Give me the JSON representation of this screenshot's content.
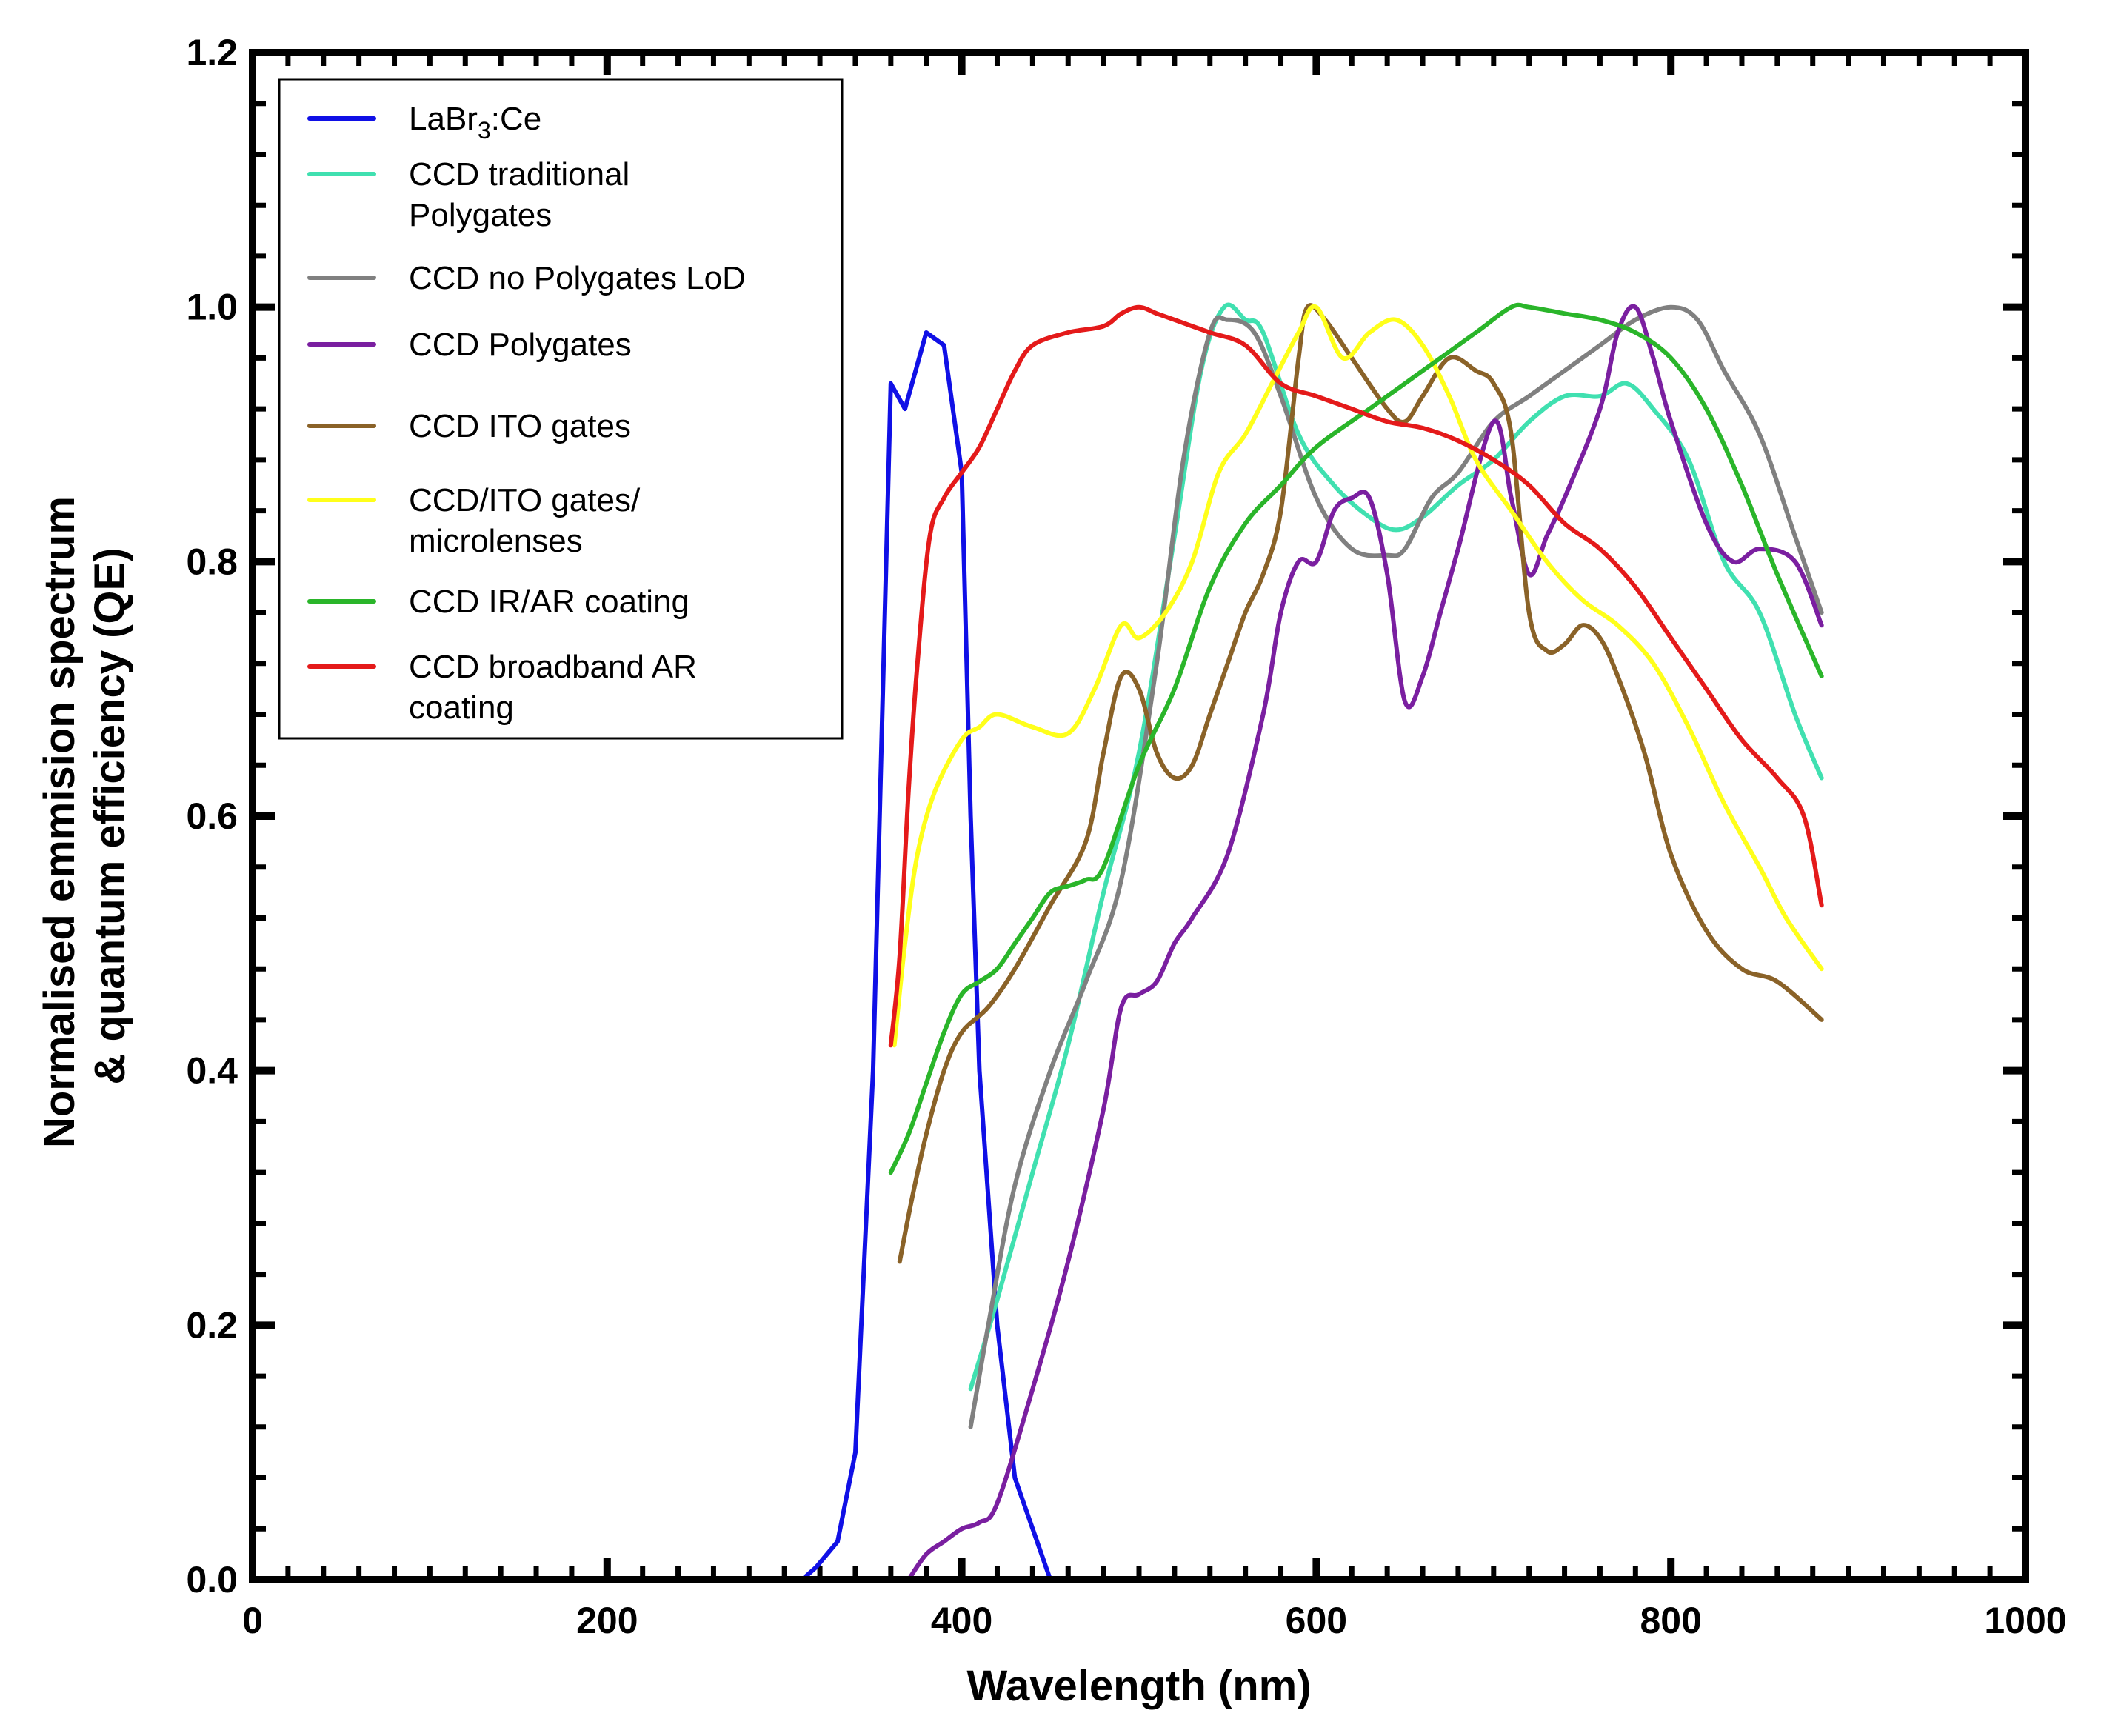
{
  "chart_data": {
    "type": "line",
    "title": "",
    "xlabel": "Wavelength (nm)",
    "ylabel_lines": [
      "Normalised emmision spectrum",
      "& quantum efficiency (QE)"
    ],
    "xlim": [
      0,
      1000
    ],
    "ylim": [
      0,
      1.2
    ],
    "xticks": [
      0,
      200,
      400,
      600,
      800,
      1000
    ],
    "xtick_labels": [
      "0",
      "200",
      "400",
      "600",
      "800",
      "1000"
    ],
    "yticks": [
      0,
      0.2,
      0.4,
      0.6,
      0.8,
      1.0,
      1.2
    ],
    "ytick_labels": [
      "0.0",
      "0.2",
      "0.4",
      "0.6",
      "0.8",
      "1.0",
      "1.2"
    ],
    "grid": false,
    "legend_position": "top-left",
    "series": [
      {
        "name": "LaBr3:Ce",
        "legend_label": {
          "main": "LaBr",
          "sub": "3",
          "tail": ":Ce"
        },
        "color": "#1010e6",
        "x": [
          310,
          318,
          330,
          340,
          350,
          360,
          368,
          380,
          390,
          400,
          405,
          410,
          420,
          430,
          440,
          450
        ],
        "y": [
          0.0,
          0.01,
          0.03,
          0.1,
          0.4,
          0.94,
          0.92,
          0.98,
          0.97,
          0.87,
          0.6,
          0.4,
          0.2,
          0.08,
          0.04,
          0.0
        ]
      },
      {
        "name": "CCD traditional Polygates",
        "legend_lines": [
          "CCD traditional",
          "Polygates"
        ],
        "color": "#40e0b0",
        "x": [
          405,
          420,
          440,
          460,
          480,
          500,
          520,
          535,
          548,
          560,
          570,
          590,
          610,
          630,
          645,
          660,
          680,
          700,
          720,
          740,
          760,
          775,
          790,
          810,
          830,
          850,
          870,
          885
        ],
        "y": [
          0.15,
          0.22,
          0.32,
          0.42,
          0.54,
          0.65,
          0.82,
          0.95,
          1.0,
          0.99,
          0.98,
          0.9,
          0.86,
          0.835,
          0.825,
          0.835,
          0.86,
          0.88,
          0.91,
          0.93,
          0.93,
          0.94,
          0.92,
          0.88,
          0.8,
          0.76,
          0.68,
          0.63
        ]
      },
      {
        "name": "CCD no Polygates LoD",
        "legend_lines": [
          "CCD no Polygates LoD"
        ],
        "color": "#808080",
        "x": [
          405,
          415,
          430,
          450,
          470,
          490,
          510,
          525,
          540,
          550,
          565,
          580,
          600,
          620,
          640,
          650,
          665,
          680,
          700,
          720,
          740,
          760,
          780,
          800,
          815,
          830,
          850,
          870,
          885
        ],
        "y": [
          0.12,
          0.2,
          0.31,
          0.4,
          0.47,
          0.55,
          0.72,
          0.88,
          0.98,
          0.99,
          0.98,
          0.93,
          0.85,
          0.81,
          0.805,
          0.81,
          0.85,
          0.87,
          0.91,
          0.93,
          0.95,
          0.97,
          0.99,
          1.0,
          0.99,
          0.95,
          0.9,
          0.82,
          0.76
        ]
      },
      {
        "name": "CCD Polygates",
        "legend_lines": [
          "CCD Polygates"
        ],
        "color": "#7a1fa0",
        "x": [
          370,
          380,
          390,
          400,
          410,
          420,
          440,
          460,
          480,
          490,
          500,
          510,
          520,
          530,
          550,
          570,
          580,
          590,
          600,
          610,
          620,
          630,
          640,
          650,
          660,
          670,
          680,
          700,
          710,
          720,
          730,
          740,
          760,
          770,
          780,
          790,
          800,
          820,
          835,
          850,
          870,
          885
        ],
        "y": [
          0.0,
          0.02,
          0.03,
          0.04,
          0.045,
          0.06,
          0.15,
          0.25,
          0.37,
          0.45,
          0.46,
          0.47,
          0.5,
          0.52,
          0.57,
          0.68,
          0.76,
          0.8,
          0.8,
          0.84,
          0.85,
          0.85,
          0.79,
          0.69,
          0.71,
          0.76,
          0.81,
          0.91,
          0.85,
          0.79,
          0.82,
          0.85,
          0.92,
          0.98,
          1.0,
          0.96,
          0.91,
          0.83,
          0.8,
          0.81,
          0.8,
          0.75
        ]
      },
      {
        "name": "CCD ITO gates",
        "legend_lines": [
          "CCD ITO gates"
        ],
        "color": "#8a6228",
        "x": [
          365,
          372,
          380,
          390,
          400,
          415,
          430,
          450,
          470,
          480,
          490,
          500,
          510,
          520,
          530,
          540,
          550,
          560,
          570,
          580,
          590,
          595,
          605,
          620,
          640,
          650,
          660,
          675,
          690,
          700,
          710,
          720,
          730,
          740,
          750,
          760,
          770,
          785,
          800,
          820,
          840,
          860,
          885
        ],
        "y": [
          0.25,
          0.3,
          0.35,
          0.4,
          0.43,
          0.45,
          0.48,
          0.53,
          0.58,
          0.65,
          0.71,
          0.7,
          0.65,
          0.63,
          0.64,
          0.68,
          0.72,
          0.76,
          0.79,
          0.84,
          0.96,
          1.0,
          0.99,
          0.96,
          0.92,
          0.91,
          0.93,
          0.96,
          0.95,
          0.94,
          0.9,
          0.76,
          0.73,
          0.735,
          0.75,
          0.74,
          0.71,
          0.65,
          0.57,
          0.51,
          0.48,
          0.47,
          0.44
        ]
      },
      {
        "name": "CCD/ITO gates/ microlenses",
        "legend_lines": [
          "CCD/ITO gates/",
          "microlenses"
        ],
        "color": "#ffff1a",
        "x": [
          362,
          368,
          375,
          385,
          400,
          410,
          420,
          440,
          460,
          475,
          490,
          500,
          515,
          530,
          545,
          560,
          575,
          590,
          600,
          615,
          630,
          645,
          660,
          675,
          690,
          710,
          730,
          750,
          770,
          790,
          810,
          830,
          850,
          865,
          885
        ],
        "y": [
          0.42,
          0.5,
          0.57,
          0.62,
          0.66,
          0.67,
          0.68,
          0.67,
          0.665,
          0.7,
          0.75,
          0.74,
          0.76,
          0.8,
          0.87,
          0.9,
          0.94,
          0.98,
          1.0,
          0.96,
          0.98,
          0.99,
          0.97,
          0.93,
          0.88,
          0.84,
          0.8,
          0.77,
          0.75,
          0.72,
          0.67,
          0.61,
          0.56,
          0.52,
          0.48
        ]
      },
      {
        "name": "CCD IR/AR coating",
        "legend_lines": [
          "CCD IR/AR coating"
        ],
        "color": "#2ab52a",
        "x": [
          360,
          370,
          380,
          390,
          400,
          410,
          420,
          430,
          440,
          450,
          460,
          470,
          480,
          500,
          520,
          540,
          560,
          580,
          600,
          630,
          660,
          690,
          710,
          720,
          740,
          760,
          780,
          800,
          820,
          840,
          860,
          885
        ],
        "y": [
          0.32,
          0.35,
          0.39,
          0.43,
          0.46,
          0.47,
          0.48,
          0.5,
          0.52,
          0.54,
          0.545,
          0.55,
          0.56,
          0.64,
          0.7,
          0.78,
          0.83,
          0.86,
          0.89,
          0.92,
          0.95,
          0.98,
          1.0,
          1.0,
          0.995,
          0.99,
          0.98,
          0.96,
          0.92,
          0.86,
          0.79,
          0.71
        ]
      },
      {
        "name": "CCD broadband AR coating",
        "legend_lines": [
          "CCD broadband AR",
          "coating"
        ],
        "color": "#e41a1a",
        "x": [
          360,
          365,
          370,
          375,
          382,
          390,
          400,
          410,
          420,
          430,
          440,
          460,
          480,
          490,
          500,
          510,
          520,
          540,
          560,
          580,
          600,
          620,
          640,
          660,
          680,
          700,
          720,
          740,
          760,
          780,
          800,
          820,
          840,
          860,
          875,
          885
        ],
        "y": [
          0.42,
          0.49,
          0.62,
          0.72,
          0.82,
          0.85,
          0.87,
          0.89,
          0.92,
          0.95,
          0.97,
          0.98,
          0.985,
          0.995,
          1.0,
          0.995,
          0.99,
          0.98,
          0.97,
          0.94,
          0.93,
          0.92,
          0.91,
          0.905,
          0.895,
          0.88,
          0.86,
          0.83,
          0.81,
          0.78,
          0.74,
          0.7,
          0.66,
          0.63,
          0.6,
          0.53
        ]
      }
    ]
  }
}
